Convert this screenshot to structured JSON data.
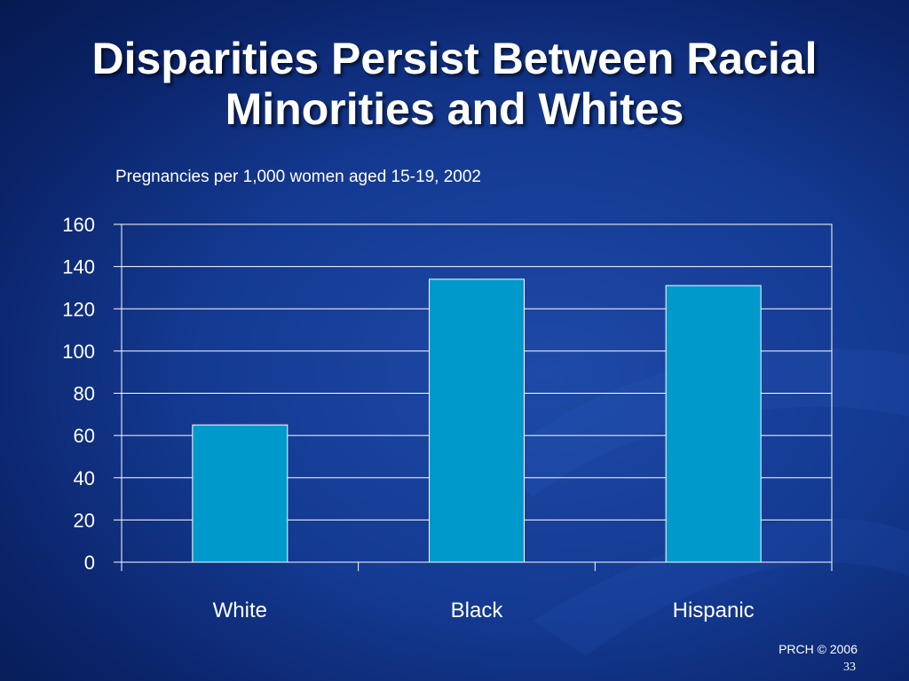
{
  "slide": {
    "title_line1": "Disparities Persist Between Racial",
    "title_line2": "Minorities and Whites",
    "footer": "PRCH © 2006",
    "slide_number": "33"
  },
  "colors": {
    "background": "#143a92",
    "bar": "#0099cc",
    "gridline": "#ffffff"
  },
  "chart_data": {
    "type": "bar",
    "title": "Pregnancies per 1,000 women aged 15-19, 2002",
    "categories": [
      "White",
      "Black",
      "Hispanic"
    ],
    "values": [
      65,
      134,
      131
    ],
    "xlabel": "",
    "ylabel": "",
    "ylim": [
      0,
      160
    ],
    "yticks": [
      "0",
      "20",
      "40",
      "60",
      "80",
      "100",
      "120",
      "140",
      "160"
    ],
    "grid": true,
    "legend": "none"
  }
}
